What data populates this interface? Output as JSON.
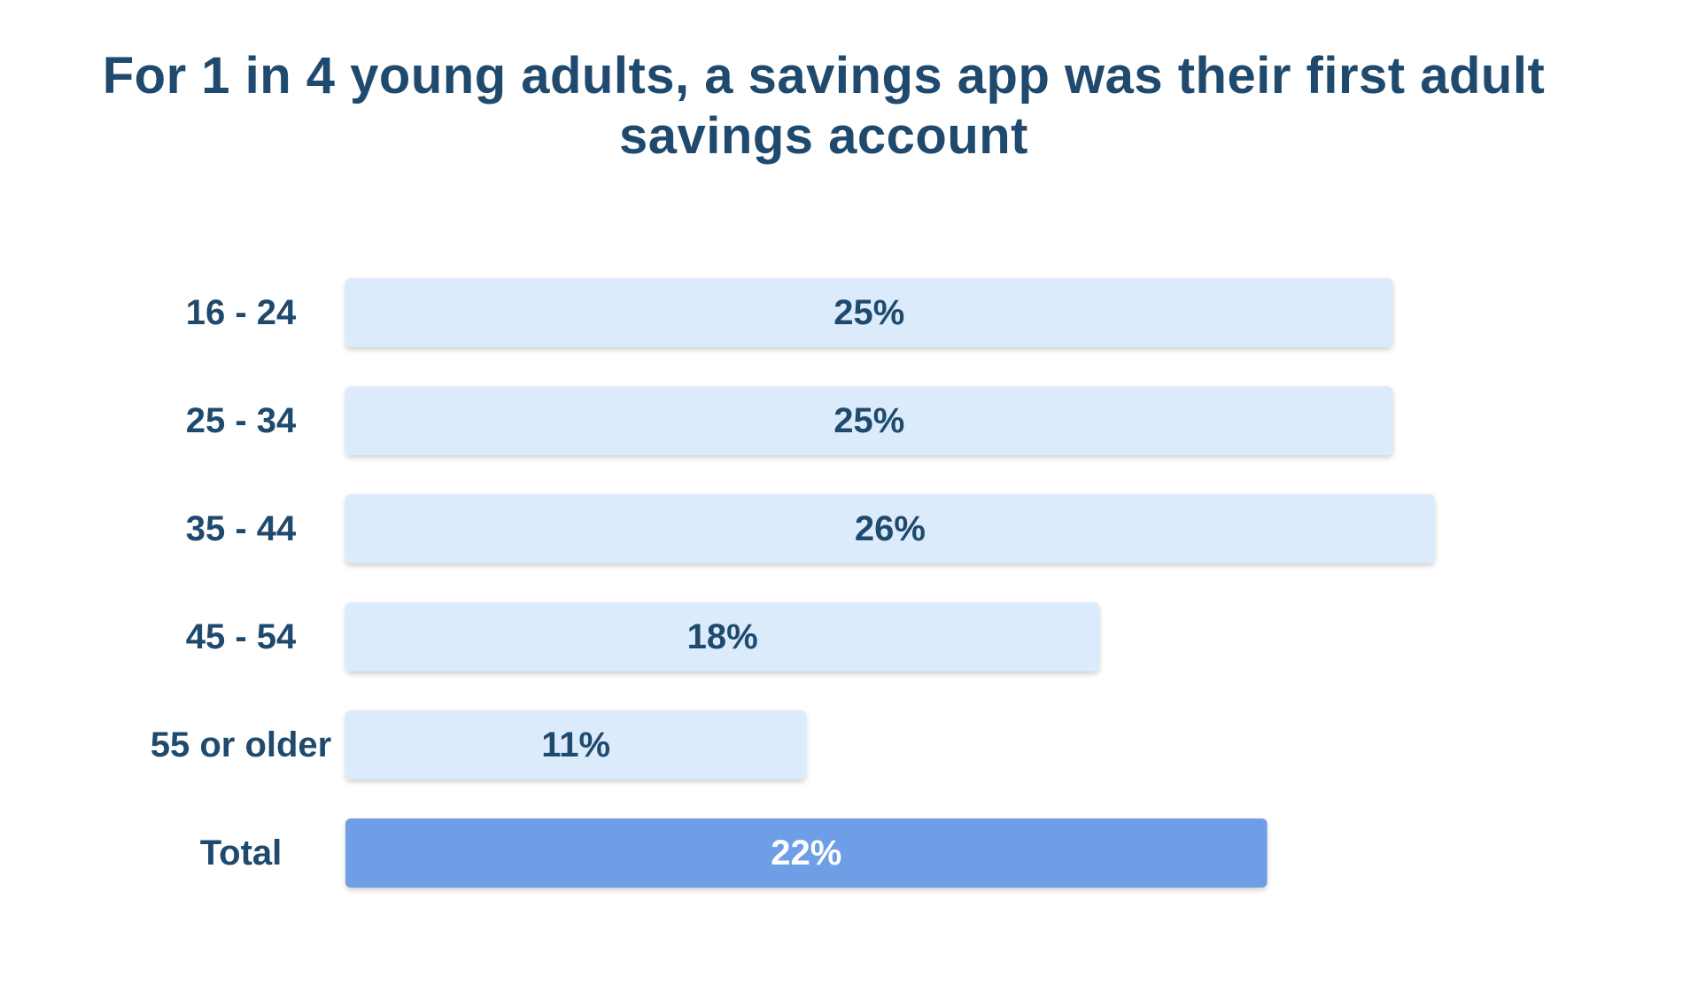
{
  "chart_data": {
    "type": "bar",
    "orientation": "horizontal",
    "title": "For 1 in 4 young adults, a savings app was their first adult savings account",
    "categories": [
      "16 - 24",
      "25 - 34",
      "35 - 44",
      "45 - 54",
      "55 or older",
      "Total"
    ],
    "values": [
      25,
      25,
      26,
      18,
      11,
      22
    ],
    "value_labels": [
      "25%",
      "25%",
      "26%",
      "18%",
      "11%",
      "22%"
    ],
    "highlight": "Total",
    "colors": {
      "bar": "#dcebfc",
      "highlight_bar": "#6d9ee6",
      "text": "#1f4a6e",
      "highlight_text": "#ffffff"
    }
  }
}
